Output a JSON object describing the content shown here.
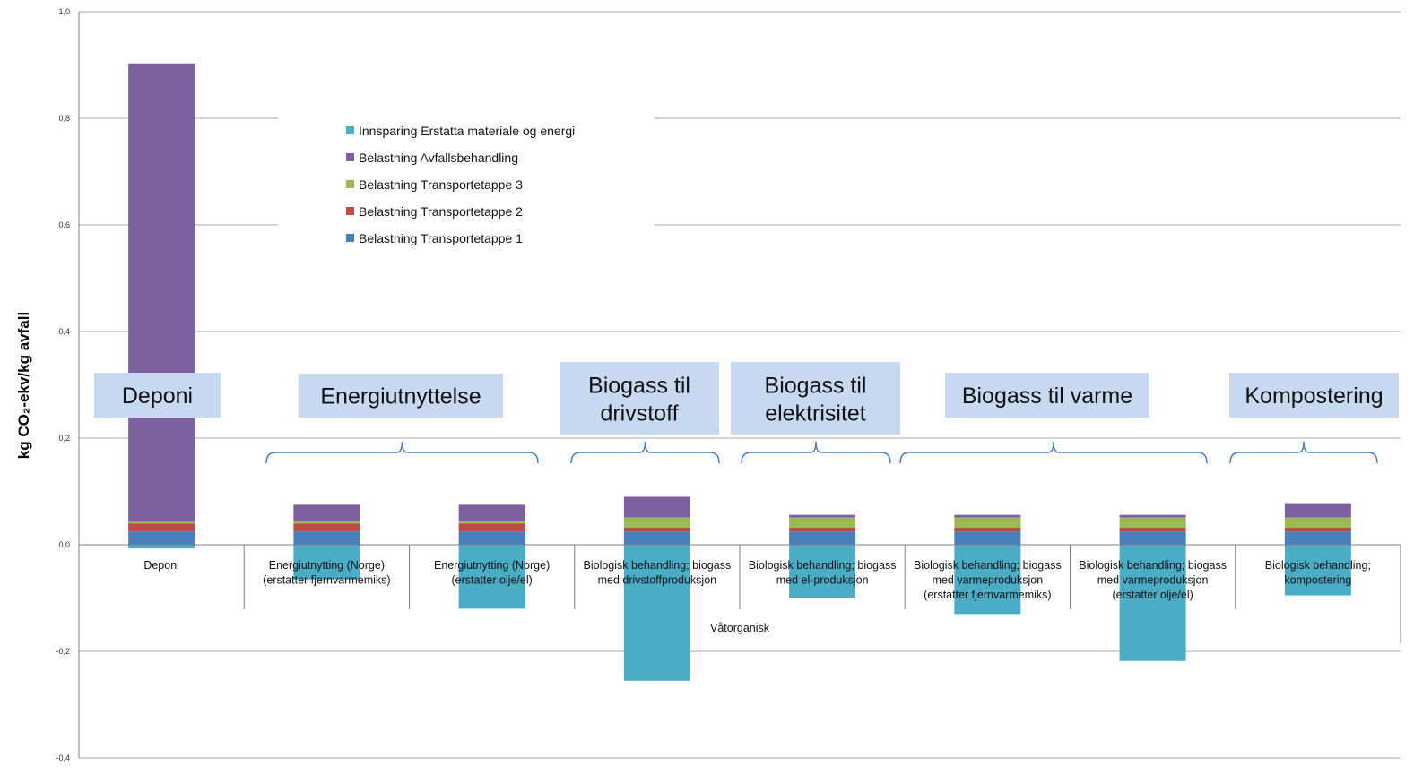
{
  "chart_data": {
    "type": "bar",
    "stacked": true,
    "ylabel": "kg CO₂-ekv/kg avfall",
    "ylim": [
      -0.4,
      1.0
    ],
    "yticks": [
      "1,0",
      "0,8",
      "0,6",
      "0,4",
      "0,2",
      "0,0",
      "-0,2",
      "-0,4"
    ],
    "grid": true,
    "legend_position": "top-center",
    "x_group_label": "Våtorganisk",
    "categories": [
      [
        "Deponi"
      ],
      [
        "Energiutnytting (Norge)",
        "(erstatter fjernvarmemiks)"
      ],
      [
        "Energiutnytting (Norge)",
        "(erstatter olje/el)"
      ],
      [
        "Biologisk behandling; biogass",
        "med drivstoffproduksjon"
      ],
      [
        "Biologisk behandling; biogass",
        "med el-produksjon"
      ],
      [
        "Biologisk behandling; biogass",
        "med varmeproduksjon",
        "(erstatter fjernvarmemiks)"
      ],
      [
        "Biologisk behandling; biogass",
        "med varmeproduksjon",
        "(erstatter olje/el)"
      ],
      [
        "Biologisk behandling;",
        "kompostering"
      ]
    ],
    "series": [
      {
        "name": "Belastning Transportetappe  1",
        "color": "#4a7ebb",
        "values": [
          0.025,
          0.025,
          0.025,
          0.025,
          0.025,
          0.025,
          0.025,
          0.025
        ]
      },
      {
        "name": "Belastning Transportetappe  2",
        "color": "#be4b48",
        "values": [
          0.015,
          0.015,
          0.015,
          0.007,
          0.007,
          0.007,
          0.007,
          0.007
        ]
      },
      {
        "name": "Belastning Transportetappe  3",
        "color": "#98b954",
        "values": [
          0.003,
          0.004,
          0.004,
          0.019,
          0.019,
          0.019,
          0.019,
          0.019
        ]
      },
      {
        "name": "Belastning Avfallsbehandling",
        "color": "#7d60a0",
        "values": [
          0.86,
          0.031,
          0.031,
          0.039,
          0.005,
          0.005,
          0.005,
          0.027
        ]
      },
      {
        "name": "Innsparing  Erstatta materiale og energi",
        "color": "#4bacc6",
        "values": [
          -0.007,
          -0.065,
          -0.12,
          -0.255,
          -0.1,
          -0.13,
          -0.218,
          -0.095
        ]
      }
    ],
    "groups": [
      {
        "label": [
          "Deponi"
        ],
        "categories": [
          0
        ]
      },
      {
        "label": [
          "Energiutnyttelse"
        ],
        "categories": [
          1,
          2
        ]
      },
      {
        "label": [
          "Biogass til",
          "drivstoff"
        ],
        "categories": [
          3
        ]
      },
      {
        "label": [
          "Biogass til",
          "elektrisitet"
        ],
        "categories": [
          4
        ]
      },
      {
        "label": [
          "Biogass til varme"
        ],
        "categories": [
          5,
          6
        ]
      },
      {
        "label": [
          "Kompostering"
        ],
        "categories": [
          7
        ]
      }
    ]
  },
  "colors": {
    "axis": "#7f7f7f",
    "grid": "#8c8c8c",
    "group_box": "#c6d9f1",
    "brace": "#4a7ebb"
  }
}
